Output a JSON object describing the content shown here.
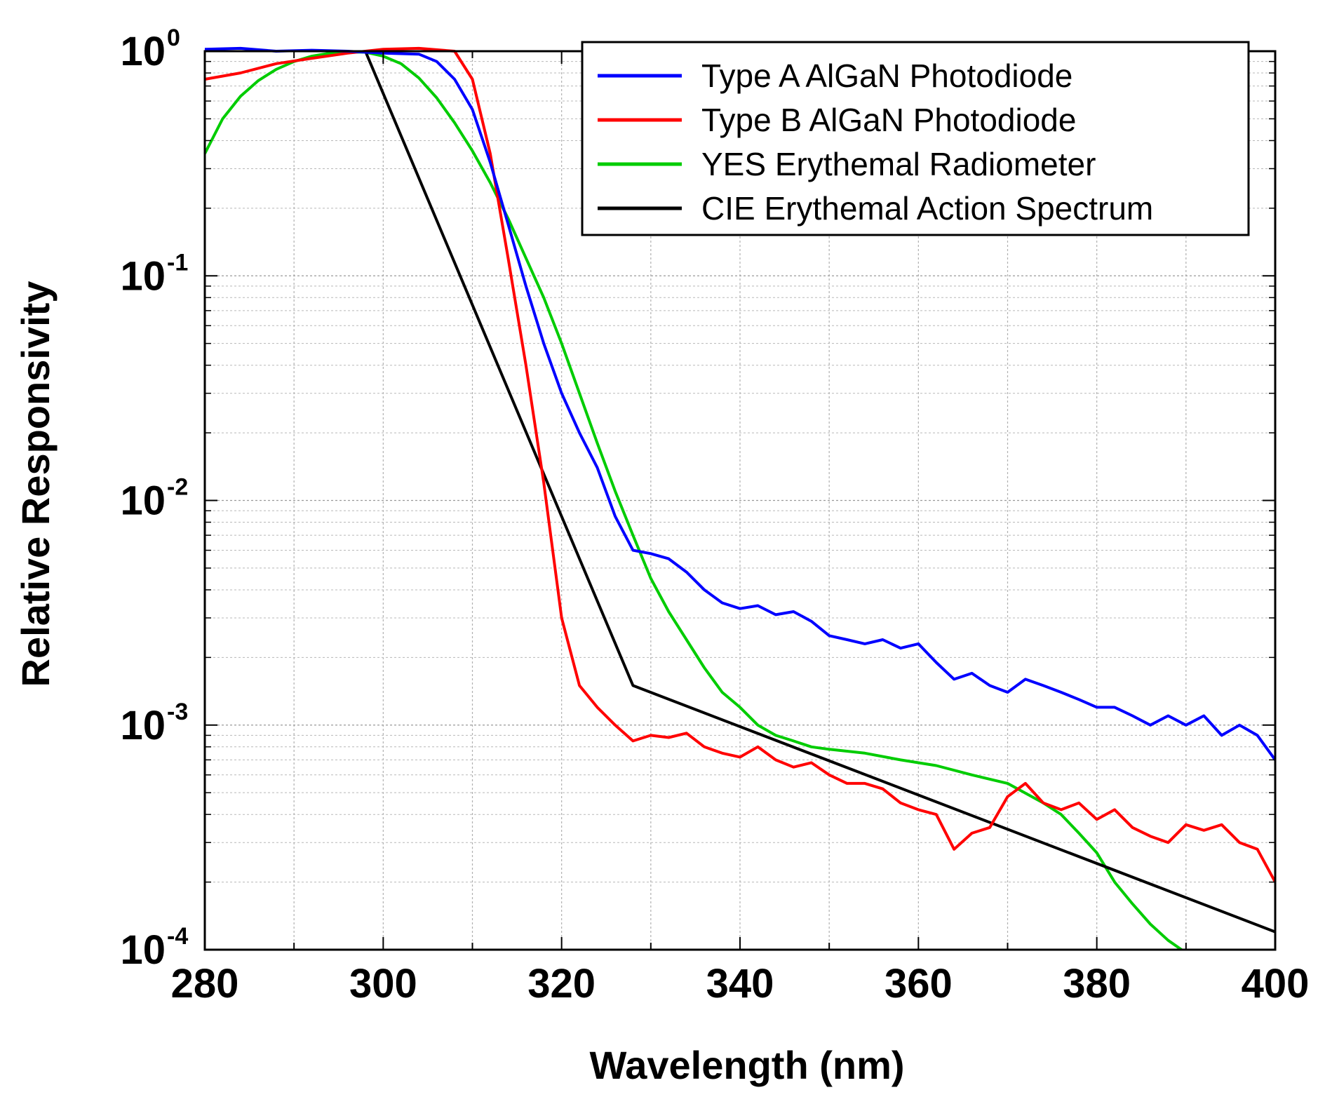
{
  "chart_data": {
    "type": "line",
    "title": "",
    "xlabel": "Wavelength (nm)",
    "ylabel": "Relative Responsivity",
    "xlim": [
      280,
      400
    ],
    "ylim": [
      0.0001,
      1
    ],
    "yscale": "log",
    "grid": true,
    "legend_position": "top-right",
    "xticks": [
      280,
      300,
      320,
      340,
      360,
      380,
      400
    ],
    "xtick_labels": [
      "280",
      "300",
      "320",
      "340",
      "360",
      "380",
      "400"
    ],
    "yticks": [
      {
        "value": 1,
        "base": "10",
        "exp": "0"
      },
      {
        "value": 0.1,
        "base": "10",
        "exp": "-1"
      },
      {
        "value": 0.01,
        "base": "10",
        "exp": "-2"
      },
      {
        "value": 0.001,
        "base": "10",
        "exp": "-3"
      },
      {
        "value": 0.0001,
        "base": "10",
        "exp": "-4"
      }
    ],
    "series": [
      {
        "name": "Type A  AlGaN Photodiode",
        "color": "#0000ff",
        "x": [
          280,
          284,
          288,
          292,
          296,
          300,
          304,
          306,
          308,
          310,
          312,
          314,
          316,
          318,
          320,
          322,
          324,
          326,
          328,
          330,
          332,
          334,
          336,
          338,
          340,
          342,
          344,
          346,
          348,
          350,
          352,
          354,
          356,
          358,
          360,
          362,
          364,
          366,
          368,
          370,
          372,
          374,
          376,
          378,
          380,
          382,
          384,
          386,
          388,
          390,
          392,
          394,
          396,
          398,
          400
        ],
        "y": [
          1.02,
          1.03,
          1.0,
          1.01,
          1.0,
          0.98,
          0.97,
          0.9,
          0.75,
          0.55,
          0.32,
          0.17,
          0.09,
          0.05,
          0.03,
          0.02,
          0.014,
          0.0085,
          0.006,
          0.0058,
          0.0055,
          0.0048,
          0.004,
          0.0035,
          0.0033,
          0.0034,
          0.0031,
          0.0032,
          0.0029,
          0.0025,
          0.0024,
          0.0023,
          0.0024,
          0.0022,
          0.0023,
          0.0019,
          0.0016,
          0.0017,
          0.0015,
          0.0014,
          0.0016,
          0.0015,
          0.0014,
          0.0013,
          0.0012,
          0.0012,
          0.0011,
          0.001,
          0.0011,
          0.001,
          0.0011,
          0.0009,
          0.001,
          0.0009,
          0.0007
        ]
      },
      {
        "name": "Type B AlGaN Photodiode",
        "color": "#ff0000",
        "x": [
          280,
          284,
          288,
          292,
          296,
          300,
          304,
          308,
          310,
          312,
          314,
          316,
          318,
          320,
          322,
          324,
          326,
          328,
          330,
          332,
          334,
          336,
          338,
          340,
          342,
          344,
          346,
          348,
          350,
          352,
          354,
          356,
          358,
          360,
          362,
          364,
          366,
          368,
          370,
          372,
          374,
          376,
          378,
          380,
          382,
          384,
          386,
          388,
          390,
          392,
          394,
          396,
          398,
          400
        ],
        "y": [
          0.75,
          0.8,
          0.88,
          0.93,
          0.98,
          1.02,
          1.03,
          1.0,
          0.75,
          0.35,
          0.12,
          0.04,
          0.012,
          0.003,
          0.0015,
          0.0012,
          0.001,
          0.00085,
          0.0009,
          0.00088,
          0.00092,
          0.0008,
          0.00075,
          0.00072,
          0.0008,
          0.0007,
          0.00065,
          0.00068,
          0.0006,
          0.00055,
          0.00055,
          0.00052,
          0.00045,
          0.00042,
          0.0004,
          0.00028,
          0.00033,
          0.00035,
          0.00048,
          0.00055,
          0.00045,
          0.00042,
          0.00045,
          0.00038,
          0.00042,
          0.00035,
          0.00032,
          0.0003,
          0.00036,
          0.00034,
          0.00036,
          0.0003,
          0.00028,
          0.0002
        ]
      },
      {
        "name": "YES Erythemal Radiometer",
        "color": "#00cc00",
        "x": [
          280,
          282,
          284,
          286,
          288,
          290,
          292,
          294,
          296,
          298,
          300,
          302,
          304,
          306,
          308,
          310,
          312,
          314,
          316,
          318,
          320,
          322,
          324,
          326,
          328,
          330,
          332,
          334,
          336,
          338,
          340,
          342,
          344,
          346,
          348,
          350,
          354,
          358,
          362,
          366,
          370,
          374,
          376,
          378,
          380,
          382,
          384,
          386,
          388,
          389.5
        ],
        "y": [
          0.35,
          0.5,
          0.63,
          0.74,
          0.83,
          0.9,
          0.95,
          0.98,
          0.99,
          0.99,
          0.95,
          0.88,
          0.76,
          0.62,
          0.48,
          0.36,
          0.26,
          0.18,
          0.12,
          0.08,
          0.05,
          0.03,
          0.018,
          0.011,
          0.007,
          0.0045,
          0.0032,
          0.0024,
          0.0018,
          0.0014,
          0.0012,
          0.001,
          0.0009,
          0.00085,
          0.0008,
          0.00078,
          0.00075,
          0.0007,
          0.00066,
          0.0006,
          0.00055,
          0.00045,
          0.0004,
          0.00033,
          0.00027,
          0.0002,
          0.00016,
          0.00013,
          0.00011,
          0.0001
        ]
      },
      {
        "name": "CIE Erythemal Action Spectrum",
        "color": "#000000",
        "x": [
          298,
          328,
          400
        ],
        "y": [
          1.0,
          0.0015,
          0.00012
        ]
      }
    ]
  }
}
